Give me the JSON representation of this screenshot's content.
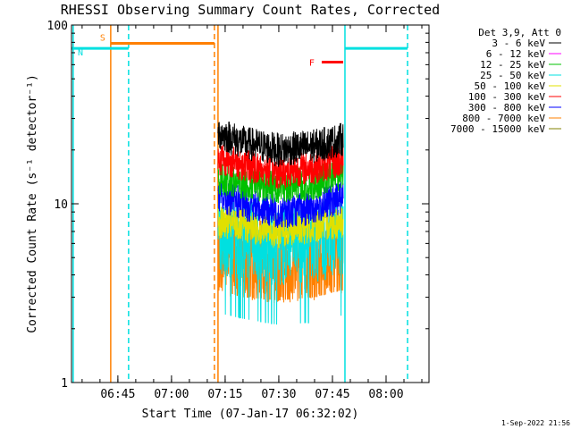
{
  "colors": {
    "background": "#ffffff",
    "axis": "#000000",
    "orbit_marker": "#00e0e0",
    "saa_marker": "#ff8000",
    "flare_marker": "#ff0000"
  },
  "chart_data": {
    "type": "line",
    "title": "RHESSI Observing Summary Count Rates, Corrected",
    "xlabel": "Start Time (07-Jan-17 06:32:02)",
    "ylabel": "Corrected Count Rate (s⁻¹ detector⁻¹)",
    "yscale": "log",
    "ylim": [
      1,
      100
    ],
    "xlim": [
      "06:32:02",
      "08:12:00"
    ],
    "x_ticks": [
      "06:45",
      "07:00",
      "07:15",
      "07:30",
      "07:45",
      "08:00"
    ],
    "y_ticks": [
      "1",
      "10",
      "100"
    ],
    "legend_title": "Det 3,9, Att 0",
    "legend_position": "top-right, outside plot",
    "grid": false,
    "series": [
      {
        "name": "3 - 6 keV",
        "color": "#000000",
        "x": [
          "07:13:00",
          "07:20:00",
          "07:30:00",
          "07:40:00",
          "07:48:00"
        ],
        "y": [
          25,
          22,
          20,
          21,
          23
        ]
      },
      {
        "name": "6 - 12 keV",
        "color": "#ff00ff",
        "x": [],
        "y": []
      },
      {
        "name": "12 - 25 keV",
        "color": "#00c000",
        "x": [
          "07:13:00",
          "07:20:00",
          "07:30:00",
          "07:40:00",
          "07:48:00"
        ],
        "y": [
          14,
          13,
          12.5,
          13,
          15
        ]
      },
      {
        "name": "25 - 50 keV",
        "color": "#00e0e0",
        "x": [
          "07:13:00",
          "07:20:00",
          "07:30:00",
          "07:40:00",
          "07:48:00"
        ],
        "y": [
          7,
          6.5,
          6,
          6.2,
          6.8
        ]
      },
      {
        "name": "50 - 100 keV",
        "color": "#e0e000",
        "x": [
          "07:13:00",
          "07:20:00",
          "07:30:00",
          "07:40:00",
          "07:48:00"
        ],
        "y": [
          8,
          7.5,
          7,
          7.5,
          8
        ]
      },
      {
        "name": "100 - 300 keV",
        "color": "#ff0000",
        "x": [
          "07:13:00",
          "07:20:00",
          "07:30:00",
          "07:40:00",
          "07:48:00"
        ],
        "y": [
          18,
          16.5,
          15,
          16,
          17.5
        ]
      },
      {
        "name": "300 - 800 keV",
        "color": "#0000ff",
        "x": [
          "07:13:00",
          "07:20:00",
          "07:30:00",
          "07:40:00",
          "07:48:00"
        ],
        "y": [
          11,
          10,
          9,
          9.5,
          11
        ]
      },
      {
        "name": "800 - 7000 keV",
        "color": "#ff8000",
        "x": [
          "07:13:00",
          "07:20:00",
          "07:30:00",
          "07:40:00",
          "07:48:00"
        ],
        "y": [
          5.5,
          5,
          4.8,
          5,
          5.5
        ]
      },
      {
        "name": "7000 - 15000 keV",
        "color": "#808000",
        "x": [],
        "y": []
      }
    ],
    "markers": [
      {
        "label": "S",
        "color": "#ff8000",
        "start": "06:43:00",
        "end": "07:12:00",
        "value": 79
      },
      {
        "label": "N",
        "color": "#00e0e0",
        "start": "06:32:02",
        "end": "06:48:00",
        "value": 74
      },
      {
        "label": "F",
        "color": "#ff0000",
        "start": "07:42:00",
        "end": "07:48:00",
        "value": 62
      },
      {
        "label": "",
        "color": "#00e0e0",
        "start": "07:48:30",
        "end": "08:06:00",
        "value": 74
      }
    ],
    "vertical_lines": [
      {
        "time": "06:32:30",
        "color": "#00e0e0",
        "style": "solid"
      },
      {
        "time": "06:43:00",
        "color": "#ff8000",
        "style": "solid"
      },
      {
        "time": "06:48:00",
        "color": "#00e0e0",
        "style": "dashed"
      },
      {
        "time": "07:12:00",
        "color": "#ff8000",
        "style": "dashed"
      },
      {
        "time": "07:13:00",
        "color": "#ff8000",
        "style": "solid"
      },
      {
        "time": "07:48:30",
        "color": "#00e0e0",
        "style": "solid"
      },
      {
        "time": "08:06:00",
        "color": "#00e0e0",
        "style": "dashed"
      }
    ]
  },
  "footer": {
    "timestamp": "1-Sep-2022 21:56"
  }
}
